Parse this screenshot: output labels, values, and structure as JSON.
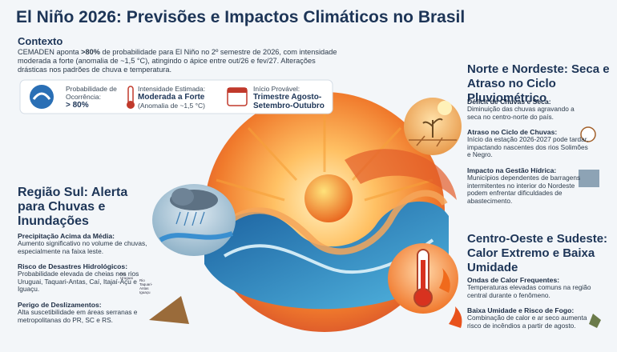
{
  "header": {
    "title": "El Niño 2026: Previsões e Impactos Climáticos no Brasil"
  },
  "context": {
    "heading": "Contexto",
    "text": [
      "CEMADEN aponta ",
      ">80%",
      " de probabilidade para El Niño no 2º semestre de 2026, com intensidade moderada a forte (anomalia de ~1,5 °C), atingindo o ápice entre out/26 e fev/27. Alterações drásticas nos padrões de chuva e temperatura."
    ]
  },
  "stats": [
    {
      "label": "Probabilidade de Ocorrência:",
      "value": "> 80%"
    },
    {
      "label": "Intensidade Estimada:",
      "value": "Moderada a Forte",
      "note": "(Anomalia de ~1,5 °C)"
    },
    {
      "label": "Início Provável:",
      "value": "Trimestre Agosto-Setembro-Outubro"
    }
  ],
  "sections": [
    {
      "title": "Norte e Nordeste: Seca e Atraso no Ciclo Pluviométrico",
      "items": [
        {
          "heading": "Déficit de Chuvas e Seca:",
          "text": "Diminuição das chuvas agravando a seca no centro-norte do país."
        },
        {
          "heading": "Atraso no Ciclo de Chuvas:",
          "text": "Início da estação 2026-2027 pode tardar, impactando nascentes dos rios Solimões e Negro."
        },
        {
          "heading": "Impacto na Gestão Hídrica:",
          "text": "Municípios dependentes de barragens intermitentes no interior do Nordeste podem enfrentar dificuldades de abastecimento."
        }
      ]
    },
    {
      "title": "Região Sul: Alerta para Chuvas e Inundações",
      "items": [
        {
          "heading": "Precipitação Acima da Média:",
          "text": "Aumento significativo no volume de chuvas, especialmente na faixa leste."
        },
        {
          "heading": "Risco de Desastres Hidrológicos:",
          "text": "Probabilidade elevada de cheias nos rios Uruguai, Taquari-Antas, Caí, Itajaí-Açu e Iguaçu."
        },
        {
          "heading": "Perigo de Deslizamentos:",
          "text": "Alta suscetibilidade em áreas serranas e metropolitanas do PR, SC e RS."
        }
      ]
    },
    {
      "title": "Centro-Oeste e Sudeste: Calor Extremo e Baixa Umidade",
      "items": [
        {
          "heading": "Ondas de Calor Frequentes:",
          "text": "Temperaturas elevadas comuns na região central durante o fenômeno."
        },
        {
          "heading": "Baixa Umidade e Risco de Fogo:",
          "text": "Combinação de calor e ar seco aumenta risco de incêndios a partir de agosto."
        }
      ]
    }
  ],
  "map_labels": [
    "Rio Uruguai",
    "Rio Taquari-Antas Iguaçu"
  ]
}
